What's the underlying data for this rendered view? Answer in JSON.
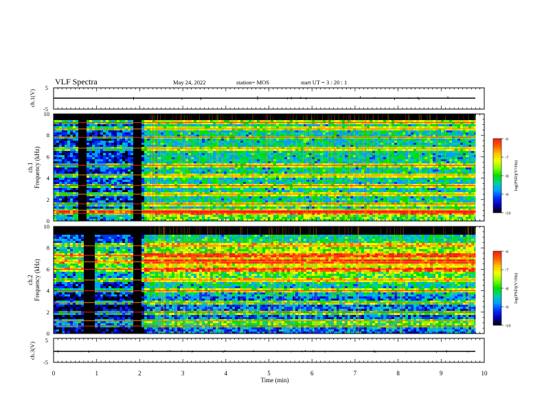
{
  "header": {
    "title": "VLF Spectra",
    "date": "May 24, 2022",
    "station": "station= MOS",
    "start": "start  UT =   3 : 20 : 1"
  },
  "panels": {
    "ch1_voltage": {
      "ylabel": "ch.1(V)",
      "ymax": "5",
      "ymin": "-5"
    },
    "ch1_spec": {
      "ylabel_top": "ch.1",
      "ylabel_bottom": "Frequency (kHz)"
    },
    "ch2_spec": {
      "ylabel_top": "ch.2",
      "ylabel_bottom": "Frequency (kHz)"
    },
    "ch3_voltage": {
      "ylabel": "ch.3(V)",
      "ymax": "5",
      "ymin": "-5"
    }
  },
  "colorbar": {
    "label": "log(PSD)(V²/Hz)",
    "ticks": [
      "-6",
      "-7",
      "-8",
      "-9",
      "-10"
    ],
    "colors": [
      "#ff1a1a",
      "#ff5a00",
      "#ffc000",
      "#f0ff00",
      "#80ff00",
      "#00e000",
      "#00d0a0",
      "#00a0ff",
      "#0030ff",
      "#0000b0",
      "#000000"
    ]
  },
  "chart_data": [
    {
      "type": "line",
      "panel": "ch.1(V)",
      "ylabel": "ch.1(V)",
      "xlim": [
        0,
        10
      ],
      "ylim": [
        -5,
        5
      ],
      "level": 0
    },
    {
      "type": "heatmap",
      "panel": "ch.1",
      "ylabel": "Frequency (kHz)",
      "xlim": [
        0,
        10
      ],
      "ylim": [
        0,
        10
      ],
      "data_end_min": 9.8,
      "yticks": [
        "0",
        "2",
        "4",
        "6",
        "8",
        "10"
      ],
      "clim": [
        -10,
        -6
      ],
      "gaps_min": [
        [
          0.55,
          0.75
        ],
        [
          1.85,
          2.0
        ]
      ],
      "bands_khz": [
        0.7,
        1.0,
        1.6,
        2.5,
        3.3,
        4.3,
        5.2,
        6.8,
        7.8,
        8.6,
        9.2
      ]
    },
    {
      "type": "heatmap",
      "panel": "ch.2",
      "ylabel": "Frequency (kHz)",
      "xlim": [
        0,
        10
      ],
      "ylim": [
        0,
        10
      ],
      "data_end_min": 9.8,
      "yticks": [
        "0",
        "2",
        "4",
        "6",
        "8",
        "10"
      ],
      "clim": [
        -10,
        -6
      ],
      "gaps_min": [
        [
          0.7,
          0.9
        ],
        [
          1.85,
          2.0
        ]
      ],
      "bands_khz": [
        0.7,
        1.2,
        2.0,
        2.9,
        4.0,
        5.0,
        6.0,
        6.7,
        7.3,
        8.2
      ]
    },
    {
      "type": "line",
      "panel": "ch.3(V)",
      "ylabel": "ch.3(V)",
      "xlim": [
        0,
        10
      ],
      "ylim": [
        -5,
        5
      ],
      "level": 0
    }
  ],
  "xaxis": {
    "label": "Time  (min)",
    "ticks": [
      "0",
      "1",
      "2",
      "3",
      "4",
      "5",
      "6",
      "7",
      "8",
      "9",
      "10"
    ]
  }
}
